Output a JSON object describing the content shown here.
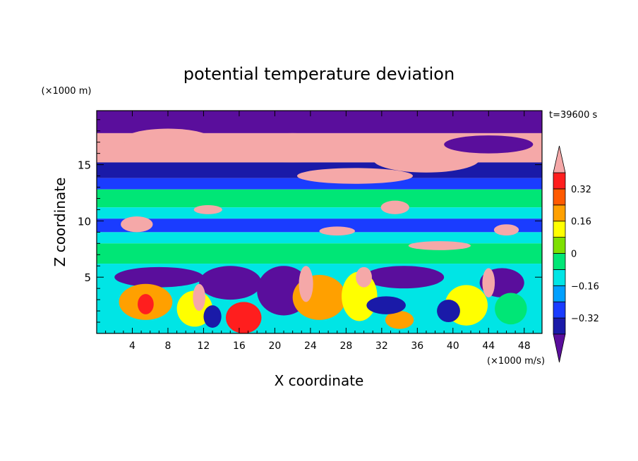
{
  "chart_data": {
    "type": "heatmap",
    "title": "potential temperature deviation",
    "xlabel": "X coordinate",
    "ylabel": "Z coordinate",
    "x_unit": "(×1000 m/s)",
    "y_unit": "(×1000 m)",
    "time_label": "t=39600 s",
    "xlim": [
      0,
      50
    ],
    "ylim": [
      0,
      19.8
    ],
    "x_ticks": [
      4,
      8,
      12,
      16,
      20,
      24,
      28,
      32,
      36,
      40,
      44,
      48
    ],
    "y_ticks": [
      5,
      10,
      15
    ],
    "colorbar": {
      "levels": [
        -0.48,
        -0.4,
        -0.32,
        -0.24,
        -0.16,
        -0.08,
        0,
        0.08,
        0.16,
        0.24,
        0.32,
        0.4
      ],
      "tick_labels": [
        "0.32",
        "0.16",
        "0",
        "−0.16",
        "−0.32"
      ],
      "tick_values": [
        0.32,
        0.16,
        0,
        -0.16,
        -0.32
      ],
      "colors": [
        "#5a0e9c",
        "#1a1aa8",
        "#1a3cff",
        "#00a0ff",
        "#00e5e5",
        "#00e676",
        "#7ee000",
        "#ffff00",
        "#ffa000",
        "#ff5a00",
        "#ff1e1e",
        "#f5a8a8"
      ],
      "extend": "both"
    },
    "field": {
      "bands": [
        {
          "z0": 17.8,
          "z1": 19.8,
          "class": "purple"
        },
        {
          "z0": 15.2,
          "z1": 17.8,
          "class": "pink"
        },
        {
          "z0": 13.8,
          "z1": 15.2,
          "class": "navy"
        },
        {
          "z0": 12.8,
          "z1": 13.8,
          "class": "blue"
        },
        {
          "z0": 11.2,
          "z1": 12.8,
          "class": "green"
        },
        {
          "z0": 10.2,
          "z1": 11.2,
          "class": "cyan"
        },
        {
          "z0": 9.0,
          "z1": 10.2,
          "class": "blue"
        },
        {
          "z0": 8.0,
          "z1": 9.0,
          "class": "cyan"
        },
        {
          "z0": 6.2,
          "z1": 8.0,
          "class": "green"
        },
        {
          "z0": 0.0,
          "z1": 6.2,
          "class": "cyan"
        }
      ],
      "blobs": [
        {
          "x": 8,
          "z": 17.2,
          "rx": 5,
          "rz": 1.0,
          "class": "pink"
        },
        {
          "x": 22,
          "z": 16.5,
          "rx": 6,
          "rz": 1.3,
          "class": "pink"
        },
        {
          "x": 37,
          "z": 15.5,
          "rx": 6,
          "rz": 1.2,
          "class": "pink"
        },
        {
          "x": 29,
          "z": 14.0,
          "rx": 6.5,
          "rz": 0.7,
          "class": "pink"
        },
        {
          "x": 44,
          "z": 16.8,
          "rx": 5,
          "rz": 0.8,
          "class": "purple"
        },
        {
          "x": 33.5,
          "z": 11.2,
          "rx": 1.6,
          "rz": 0.6,
          "class": "pink"
        },
        {
          "x": 12.5,
          "z": 11.0,
          "rx": 1.6,
          "rz": 0.4,
          "class": "pink"
        },
        {
          "x": 4.5,
          "z": 9.7,
          "rx": 1.8,
          "rz": 0.7,
          "class": "pink"
        },
        {
          "x": 27,
          "z": 9.1,
          "rx": 2.0,
          "rz": 0.4,
          "class": "pink"
        },
        {
          "x": 38.5,
          "z": 7.8,
          "rx": 3.5,
          "rz": 0.4,
          "class": "pink"
        },
        {
          "x": 46,
          "z": 9.2,
          "rx": 1.4,
          "rz": 0.5,
          "class": "pink"
        },
        {
          "x": 7,
          "z": 5.0,
          "rx": 5,
          "rz": 0.9,
          "class": "purple"
        },
        {
          "x": 15,
          "z": 4.5,
          "rx": 3.5,
          "rz": 1.5,
          "class": "purple"
        },
        {
          "x": 21,
          "z": 3.8,
          "rx": 3,
          "rz": 2.2,
          "class": "purple"
        },
        {
          "x": 34.5,
          "z": 5.0,
          "rx": 4.5,
          "rz": 1.0,
          "class": "purple"
        },
        {
          "x": 45.5,
          "z": 4.5,
          "rx": 2.5,
          "rz": 1.3,
          "class": "purple"
        },
        {
          "x": 5.5,
          "z": 2.8,
          "rx": 3.0,
          "rz": 1.6,
          "class": "orange"
        },
        {
          "x": 11,
          "z": 2.2,
          "rx": 2.0,
          "rz": 1.6,
          "class": "yellow"
        },
        {
          "x": 16.5,
          "z": 1.4,
          "rx": 2.0,
          "rz": 1.4,
          "class": "red"
        },
        {
          "x": 25,
          "z": 3.2,
          "rx": 3.0,
          "rz": 2.0,
          "class": "orange"
        },
        {
          "x": 29.5,
          "z": 3.3,
          "rx": 2.0,
          "rz": 2.2,
          "class": "yellow"
        },
        {
          "x": 41.5,
          "z": 2.5,
          "rx": 2.4,
          "rz": 1.8,
          "class": "yellow"
        },
        {
          "x": 34,
          "z": 1.2,
          "rx": 1.6,
          "rz": 0.8,
          "class": "orange"
        },
        {
          "x": 46.5,
          "z": 2.2,
          "rx": 1.8,
          "rz": 1.4,
          "class": "green"
        },
        {
          "x": 5.5,
          "z": 2.6,
          "rx": 0.9,
          "rz": 0.9,
          "class": "red"
        },
        {
          "x": 13,
          "z": 1.5,
          "rx": 1.0,
          "rz": 1.0,
          "class": "navy"
        },
        {
          "x": 32.5,
          "z": 2.5,
          "rx": 2.2,
          "rz": 0.8,
          "class": "navy"
        },
        {
          "x": 39.5,
          "z": 2.0,
          "rx": 1.3,
          "rz": 1.0,
          "class": "navy"
        },
        {
          "x": 23.5,
          "z": 4.4,
          "rx": 0.8,
          "rz": 1.6,
          "class": "pink"
        },
        {
          "x": 11.5,
          "z": 3.2,
          "rx": 0.7,
          "rz": 1.2,
          "class": "pink"
        },
        {
          "x": 30,
          "z": 5.0,
          "rx": 0.9,
          "rz": 0.9,
          "class": "pink"
        },
        {
          "x": 44,
          "z": 4.5,
          "rx": 0.7,
          "rz": 1.3,
          "class": "pink"
        }
      ]
    }
  }
}
